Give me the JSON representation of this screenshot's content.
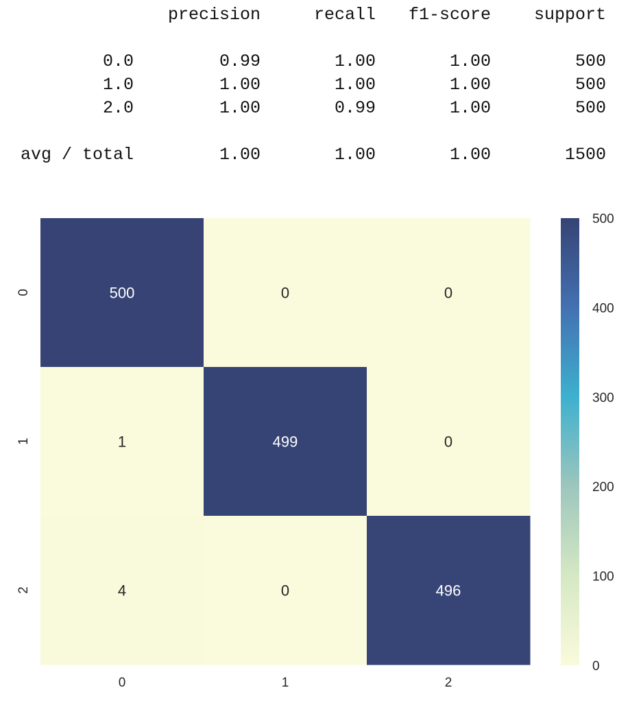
{
  "report": {
    "headers": [
      "precision",
      "recall",
      "f1-score",
      "support"
    ],
    "rows": [
      {
        "label": "0.0",
        "precision": "0.99",
        "recall": "1.00",
        "f1": "1.00",
        "support": "500"
      },
      {
        "label": "1.0",
        "precision": "1.00",
        "recall": "1.00",
        "f1": "1.00",
        "support": "500"
      },
      {
        "label": "2.0",
        "precision": "1.00",
        "recall": "0.99",
        "f1": "1.00",
        "support": "500"
      }
    ],
    "total": {
      "label": "avg / total",
      "precision": "1.00",
      "recall": "1.00",
      "f1": "1.00",
      "support": "1500"
    }
  },
  "chart_data": {
    "type": "heatmap",
    "title": "",
    "xlabel": "",
    "ylabel": "",
    "x_tick_labels": [
      "0",
      "1",
      "2"
    ],
    "y_tick_labels": [
      "0",
      "1",
      "2"
    ],
    "matrix": [
      [
        500,
        0,
        0
      ],
      [
        1,
        499,
        0
      ],
      [
        4,
        0,
        496
      ]
    ],
    "colorbar": {
      "range": [
        0,
        500
      ],
      "ticks": [
        0,
        100,
        200,
        300,
        400,
        500
      ],
      "colormap": "YlGnBu",
      "stops": [
        {
          "v": 0,
          "color": "#fafbdc"
        },
        {
          "v": 100,
          "color": "#d5e8c3"
        },
        {
          "v": 200,
          "color": "#9dc6bd"
        },
        {
          "v": 300,
          "color": "#3eb0cf"
        },
        {
          "v": 400,
          "color": "#4371b2"
        },
        {
          "v": 500,
          "color": "#364374"
        }
      ]
    },
    "grid": false,
    "legend": "none"
  }
}
